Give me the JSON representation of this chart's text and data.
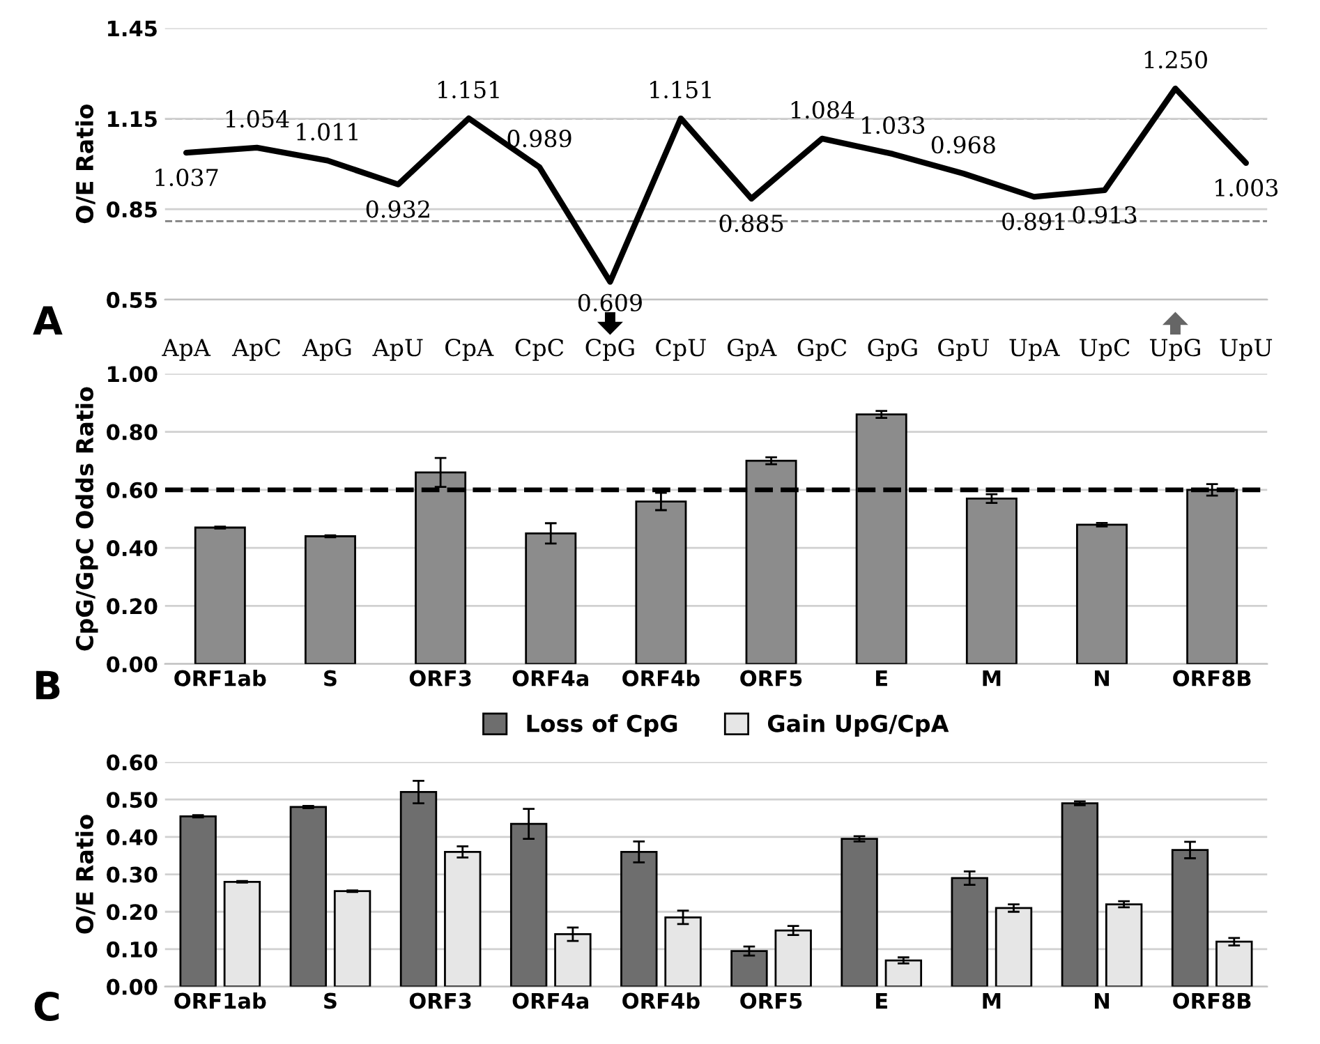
{
  "chart_data": [
    {
      "type": "line",
      "ylabel": "O/E Ratio",
      "annotations": [
        "A"
      ],
      "categories": [
        "ApA",
        "ApC",
        "ApG",
        "ApU",
        "CpA",
        "CpC",
        "CpG",
        "CpU",
        "GpA",
        "GpC",
        "GpG",
        "GpU",
        "UpA",
        "UpC",
        "UpG",
        "UpU"
      ],
      "series": [
        {
          "color": "#000000",
          "values": [
            1.037,
            1.054,
            1.011,
            0.932,
            1.151,
            0.989,
            0.609,
            1.151,
            0.885,
            1.084,
            1.033,
            0.968,
            0.891,
            0.913,
            1.25,
            1.003
          ],
          "value_labels": [
            "1.037",
            "1.054",
            "1.011",
            "0.932",
            "1.151",
            "0.989",
            "0.609",
            "1.151",
            "0.885",
            "1.084",
            "1.033",
            "0.968",
            "0.891",
            "0.913",
            "1.250",
            "1.003"
          ]
        }
      ],
      "ylim": [
        0.55,
        1.45
      ],
      "yticks": [
        0.55,
        0.85,
        1.15,
        1.45
      ],
      "grid": "y",
      "ref_lines": [
        {
          "axis": "y",
          "value": 1.15,
          "color": "#808080",
          "line_style": "dashed"
        },
        {
          "axis": "y",
          "value": 0.81,
          "color": "#808080",
          "line_style": "dashed"
        }
      ]
    },
    {
      "type": "bar",
      "ylabel": "CpG/GpC Odds Ratio",
      "annotations": [
        "B"
      ],
      "categories": [
        "ORF1ab",
        "S",
        "ORF3",
        "ORF4a",
        "ORF4b",
        "ORF5",
        "E",
        "M",
        "N",
        "ORF8B"
      ],
      "series": [
        {
          "color": "#8c8c8c",
          "values": [
            0.47,
            0.44,
            0.66,
            0.45,
            0.56,
            0.7,
            0.86,
            0.57,
            0.48,
            0.6
          ],
          "errors": [
            0.003,
            0.003,
            0.05,
            0.035,
            0.03,
            0.012,
            0.012,
            0.015,
            0.006,
            0.02
          ]
        }
      ],
      "ylim": [
        0,
        1.0
      ],
      "yticks": [
        {
          "value": 0,
          "label": "0.00"
        },
        {
          "value": 0.2,
          "label": "0.20"
        },
        {
          "value": 0.4,
          "label": "0.40"
        },
        {
          "value": 0.6,
          "label": "0.60"
        },
        {
          "value": 0.8,
          "label": "0.80"
        },
        {
          "value": 1.0,
          "label": "1.00"
        }
      ],
      "grid": "y",
      "ref_lines": [
        {
          "axis": "y",
          "value": 0.6,
          "color": "#000000",
          "line_style": "dashed"
        }
      ]
    },
    {
      "type": "bar",
      "ylabel": "O/E Ratio",
      "annotations": [
        "C"
      ],
      "categories": [
        "ORF1ab",
        "S",
        "ORF3",
        "ORF4a",
        "ORF4b",
        "ORF5",
        "E",
        "M",
        "N",
        "ORF8B"
      ],
      "series": [
        {
          "name": "Loss of CpG",
          "color": "#6e6e6e",
          "values": [
            0.455,
            0.48,
            0.52,
            0.435,
            0.36,
            0.095,
            0.395,
            0.29,
            0.49,
            0.365
          ],
          "errors": [
            0.003,
            0.003,
            0.03,
            0.04,
            0.028,
            0.012,
            0.007,
            0.018,
            0.005,
            0.022
          ]
        },
        {
          "name": "Gain UpG/CpA",
          "color": "#e6e6e6",
          "values": [
            0.28,
            0.255,
            0.36,
            0.14,
            0.185,
            0.15,
            0.07,
            0.21,
            0.22,
            0.12
          ],
          "errors": [
            0.002,
            0.002,
            0.015,
            0.018,
            0.018,
            0.012,
            0.008,
            0.01,
            0.008,
            0.01
          ]
        }
      ],
      "ylim": [
        0,
        0.6
      ],
      "yticks": [
        {
          "value": 0,
          "label": "0.00"
        },
        {
          "value": 0.1,
          "label": "0.10"
        },
        {
          "value": 0.2,
          "label": "0.20"
        },
        {
          "value": 0.3,
          "label": "0.30"
        },
        {
          "value": 0.4,
          "label": "0.40"
        },
        {
          "value": 0.5,
          "label": "0.50"
        },
        {
          "value": 0.6,
          "label": "0.60"
        }
      ],
      "grid": "y",
      "legend": "top"
    }
  ]
}
